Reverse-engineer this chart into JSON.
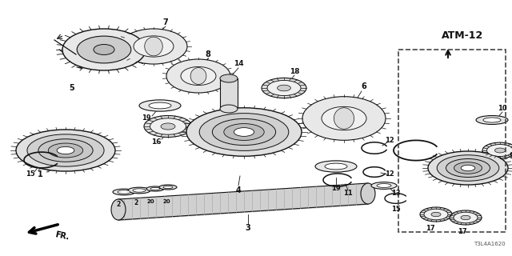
{
  "bg_color": "#ffffff",
  "col": "#111111",
  "atm_label": "ATM-12",
  "catalog_num": "T3L4A1620",
  "figw": 6.4,
  "figh": 3.2,
  "dpi": 100
}
